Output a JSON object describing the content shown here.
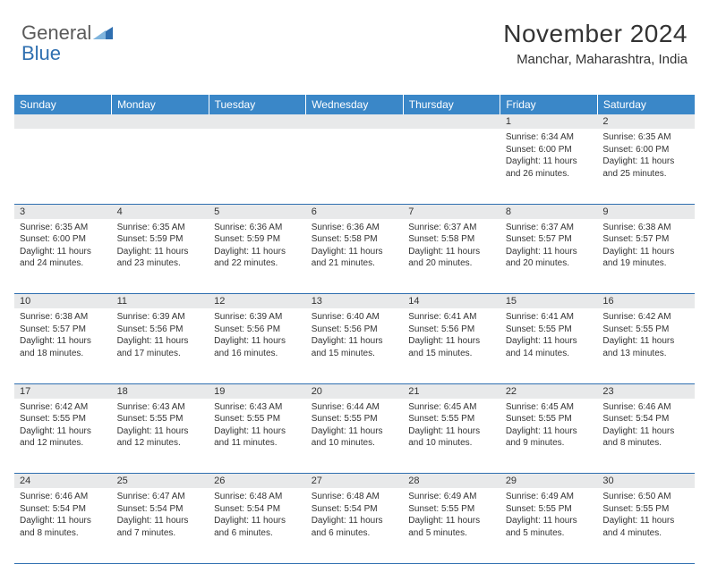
{
  "logo": {
    "text1": "General",
    "text2": "Blue"
  },
  "title": "November 2024",
  "location": "Manchar, Maharashtra, India",
  "colors": {
    "header_bg": "#3a87c8",
    "header_text": "#ffffff",
    "daynum_bg": "#e8e9ea",
    "border": "#2f6fb0",
    "text": "#333333",
    "logo_gray": "#5a5a5a",
    "logo_blue": "#2f6fb0"
  },
  "columns": [
    "Sunday",
    "Monday",
    "Tuesday",
    "Wednesday",
    "Thursday",
    "Friday",
    "Saturday"
  ],
  "weeks": [
    {
      "nums": [
        "",
        "",
        "",
        "",
        "",
        "1",
        "2"
      ],
      "cells": [
        null,
        null,
        null,
        null,
        null,
        {
          "sunrise": "6:34 AM",
          "sunset": "6:00 PM",
          "daylight": "11 hours and 26 minutes."
        },
        {
          "sunrise": "6:35 AM",
          "sunset": "6:00 PM",
          "daylight": "11 hours and 25 minutes."
        }
      ]
    },
    {
      "nums": [
        "3",
        "4",
        "5",
        "6",
        "7",
        "8",
        "9"
      ],
      "cells": [
        {
          "sunrise": "6:35 AM",
          "sunset": "6:00 PM",
          "daylight": "11 hours and 24 minutes."
        },
        {
          "sunrise": "6:35 AM",
          "sunset": "5:59 PM",
          "daylight": "11 hours and 23 minutes."
        },
        {
          "sunrise": "6:36 AM",
          "sunset": "5:59 PM",
          "daylight": "11 hours and 22 minutes."
        },
        {
          "sunrise": "6:36 AM",
          "sunset": "5:58 PM",
          "daylight": "11 hours and 21 minutes."
        },
        {
          "sunrise": "6:37 AM",
          "sunset": "5:58 PM",
          "daylight": "11 hours and 20 minutes."
        },
        {
          "sunrise": "6:37 AM",
          "sunset": "5:57 PM",
          "daylight": "11 hours and 20 minutes."
        },
        {
          "sunrise": "6:38 AM",
          "sunset": "5:57 PM",
          "daylight": "11 hours and 19 minutes."
        }
      ]
    },
    {
      "nums": [
        "10",
        "11",
        "12",
        "13",
        "14",
        "15",
        "16"
      ],
      "cells": [
        {
          "sunrise": "6:38 AM",
          "sunset": "5:57 PM",
          "daylight": "11 hours and 18 minutes."
        },
        {
          "sunrise": "6:39 AM",
          "sunset": "5:56 PM",
          "daylight": "11 hours and 17 minutes."
        },
        {
          "sunrise": "6:39 AM",
          "sunset": "5:56 PM",
          "daylight": "11 hours and 16 minutes."
        },
        {
          "sunrise": "6:40 AM",
          "sunset": "5:56 PM",
          "daylight": "11 hours and 15 minutes."
        },
        {
          "sunrise": "6:41 AM",
          "sunset": "5:56 PM",
          "daylight": "11 hours and 15 minutes."
        },
        {
          "sunrise": "6:41 AM",
          "sunset": "5:55 PM",
          "daylight": "11 hours and 14 minutes."
        },
        {
          "sunrise": "6:42 AM",
          "sunset": "5:55 PM",
          "daylight": "11 hours and 13 minutes."
        }
      ]
    },
    {
      "nums": [
        "17",
        "18",
        "19",
        "20",
        "21",
        "22",
        "23"
      ],
      "cells": [
        {
          "sunrise": "6:42 AM",
          "sunset": "5:55 PM",
          "daylight": "11 hours and 12 minutes."
        },
        {
          "sunrise": "6:43 AM",
          "sunset": "5:55 PM",
          "daylight": "11 hours and 12 minutes."
        },
        {
          "sunrise": "6:43 AM",
          "sunset": "5:55 PM",
          "daylight": "11 hours and 11 minutes."
        },
        {
          "sunrise": "6:44 AM",
          "sunset": "5:55 PM",
          "daylight": "11 hours and 10 minutes."
        },
        {
          "sunrise": "6:45 AM",
          "sunset": "5:55 PM",
          "daylight": "11 hours and 10 minutes."
        },
        {
          "sunrise": "6:45 AM",
          "sunset": "5:55 PM",
          "daylight": "11 hours and 9 minutes."
        },
        {
          "sunrise": "6:46 AM",
          "sunset": "5:54 PM",
          "daylight": "11 hours and 8 minutes."
        }
      ]
    },
    {
      "nums": [
        "24",
        "25",
        "26",
        "27",
        "28",
        "29",
        "30"
      ],
      "cells": [
        {
          "sunrise": "6:46 AM",
          "sunset": "5:54 PM",
          "daylight": "11 hours and 8 minutes."
        },
        {
          "sunrise": "6:47 AM",
          "sunset": "5:54 PM",
          "daylight": "11 hours and 7 minutes."
        },
        {
          "sunrise": "6:48 AM",
          "sunset": "5:54 PM",
          "daylight": "11 hours and 6 minutes."
        },
        {
          "sunrise": "6:48 AM",
          "sunset": "5:54 PM",
          "daylight": "11 hours and 6 minutes."
        },
        {
          "sunrise": "6:49 AM",
          "sunset": "5:55 PM",
          "daylight": "11 hours and 5 minutes."
        },
        {
          "sunrise": "6:49 AM",
          "sunset": "5:55 PM",
          "daylight": "11 hours and 5 minutes."
        },
        {
          "sunrise": "6:50 AM",
          "sunset": "5:55 PM",
          "daylight": "11 hours and 4 minutes."
        }
      ]
    }
  ],
  "labels": {
    "sunrise": "Sunrise:",
    "sunset": "Sunset:",
    "daylight": "Daylight:"
  }
}
